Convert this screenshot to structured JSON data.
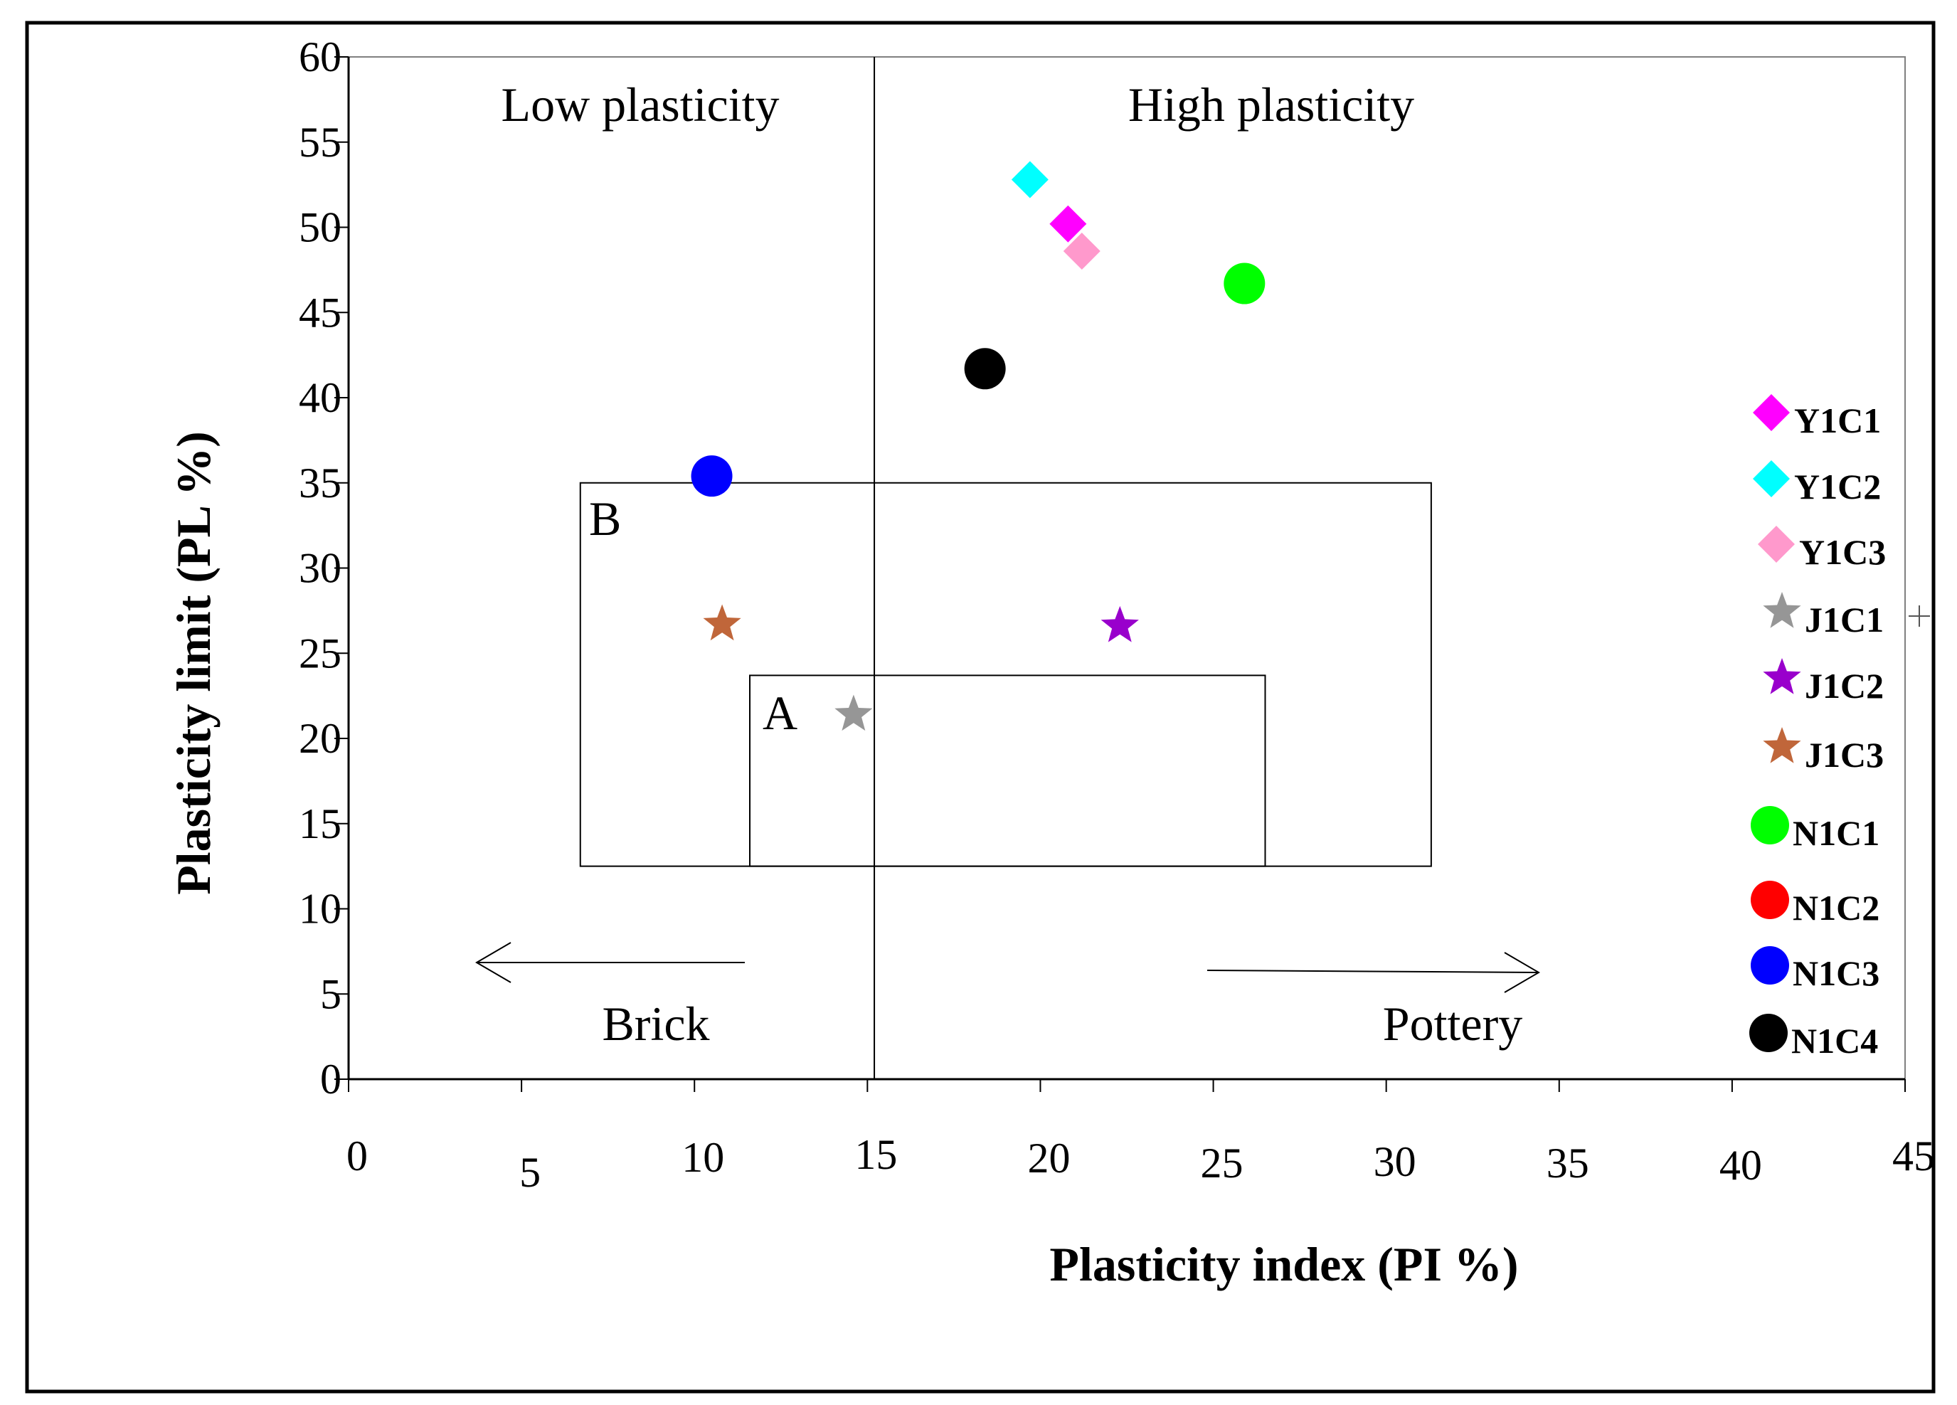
{
  "chart_data": {
    "type": "scatter",
    "title": "",
    "xlabel": "Plasticity index (PI %)",
    "ylabel": "Plasticity limit (PL %)",
    "xlim": [
      0,
      45
    ],
    "ylim": [
      0,
      60
    ],
    "xticks": [
      "0",
      "5",
      "10",
      "15",
      "20",
      "25",
      "30",
      "35",
      "40",
      "45"
    ],
    "yticks": [
      "0",
      "5",
      "10",
      "15",
      "20",
      "25",
      "30",
      "35",
      "40",
      "45",
      "50",
      "55",
      "60"
    ],
    "grid": false,
    "legend_position": "right",
    "series": [
      {
        "name": "Y1C1",
        "marker": "diamond",
        "color": "#ff00ff",
        "x": 20.8,
        "y": 50.2
      },
      {
        "name": "Y1C2",
        "marker": "diamond",
        "color": "#00ffff",
        "x": 19.7,
        "y": 52.8
      },
      {
        "name": "Y1C3",
        "marker": "diamond",
        "color": "#ff99cc",
        "x": 21.2,
        "y": 48.6
      },
      {
        "name": "J1C1",
        "marker": "star",
        "color": "#969696",
        "x": 14.6,
        "y": 21.4
      },
      {
        "name": "J1C2",
        "marker": "star",
        "color": "#9900cc",
        "x": 22.3,
        "y": 26.6
      },
      {
        "name": "J1C3",
        "marker": "star",
        "color": "#c0663a",
        "x": 10.8,
        "y": 26.7
      },
      {
        "name": "N1C1",
        "marker": "circle",
        "color": "#00ff00",
        "x": 25.9,
        "y": 46.7
      },
      {
        "name": "N1C2",
        "marker": "circle",
        "color": "#ff0000",
        "x": null,
        "y": null
      },
      {
        "name": "N1C3",
        "marker": "circle",
        "color": "#0000ff",
        "x": 10.5,
        "y": 35.4
      },
      {
        "name": "N1C4",
        "marker": "circle",
        "color": "#000000",
        "x": 18.4,
        "y": 41.7
      }
    ],
    "annotations": {
      "low_plasticity": "Low plasticity",
      "high_plasticity": "High plasticity",
      "region_a": "A",
      "region_b": "B",
      "brick": "Brick",
      "pottery": "Pottery"
    },
    "regions": [
      {
        "name": "B",
        "x_range": [
          6.7,
          31.3
        ],
        "y_range": [
          12.5,
          35
        ]
      },
      {
        "name": "A",
        "x_range": [
          11.6,
          26.5
        ],
        "y_range": [
          12.5,
          23.7
        ]
      }
    ],
    "divider_x": 15.2
  }
}
